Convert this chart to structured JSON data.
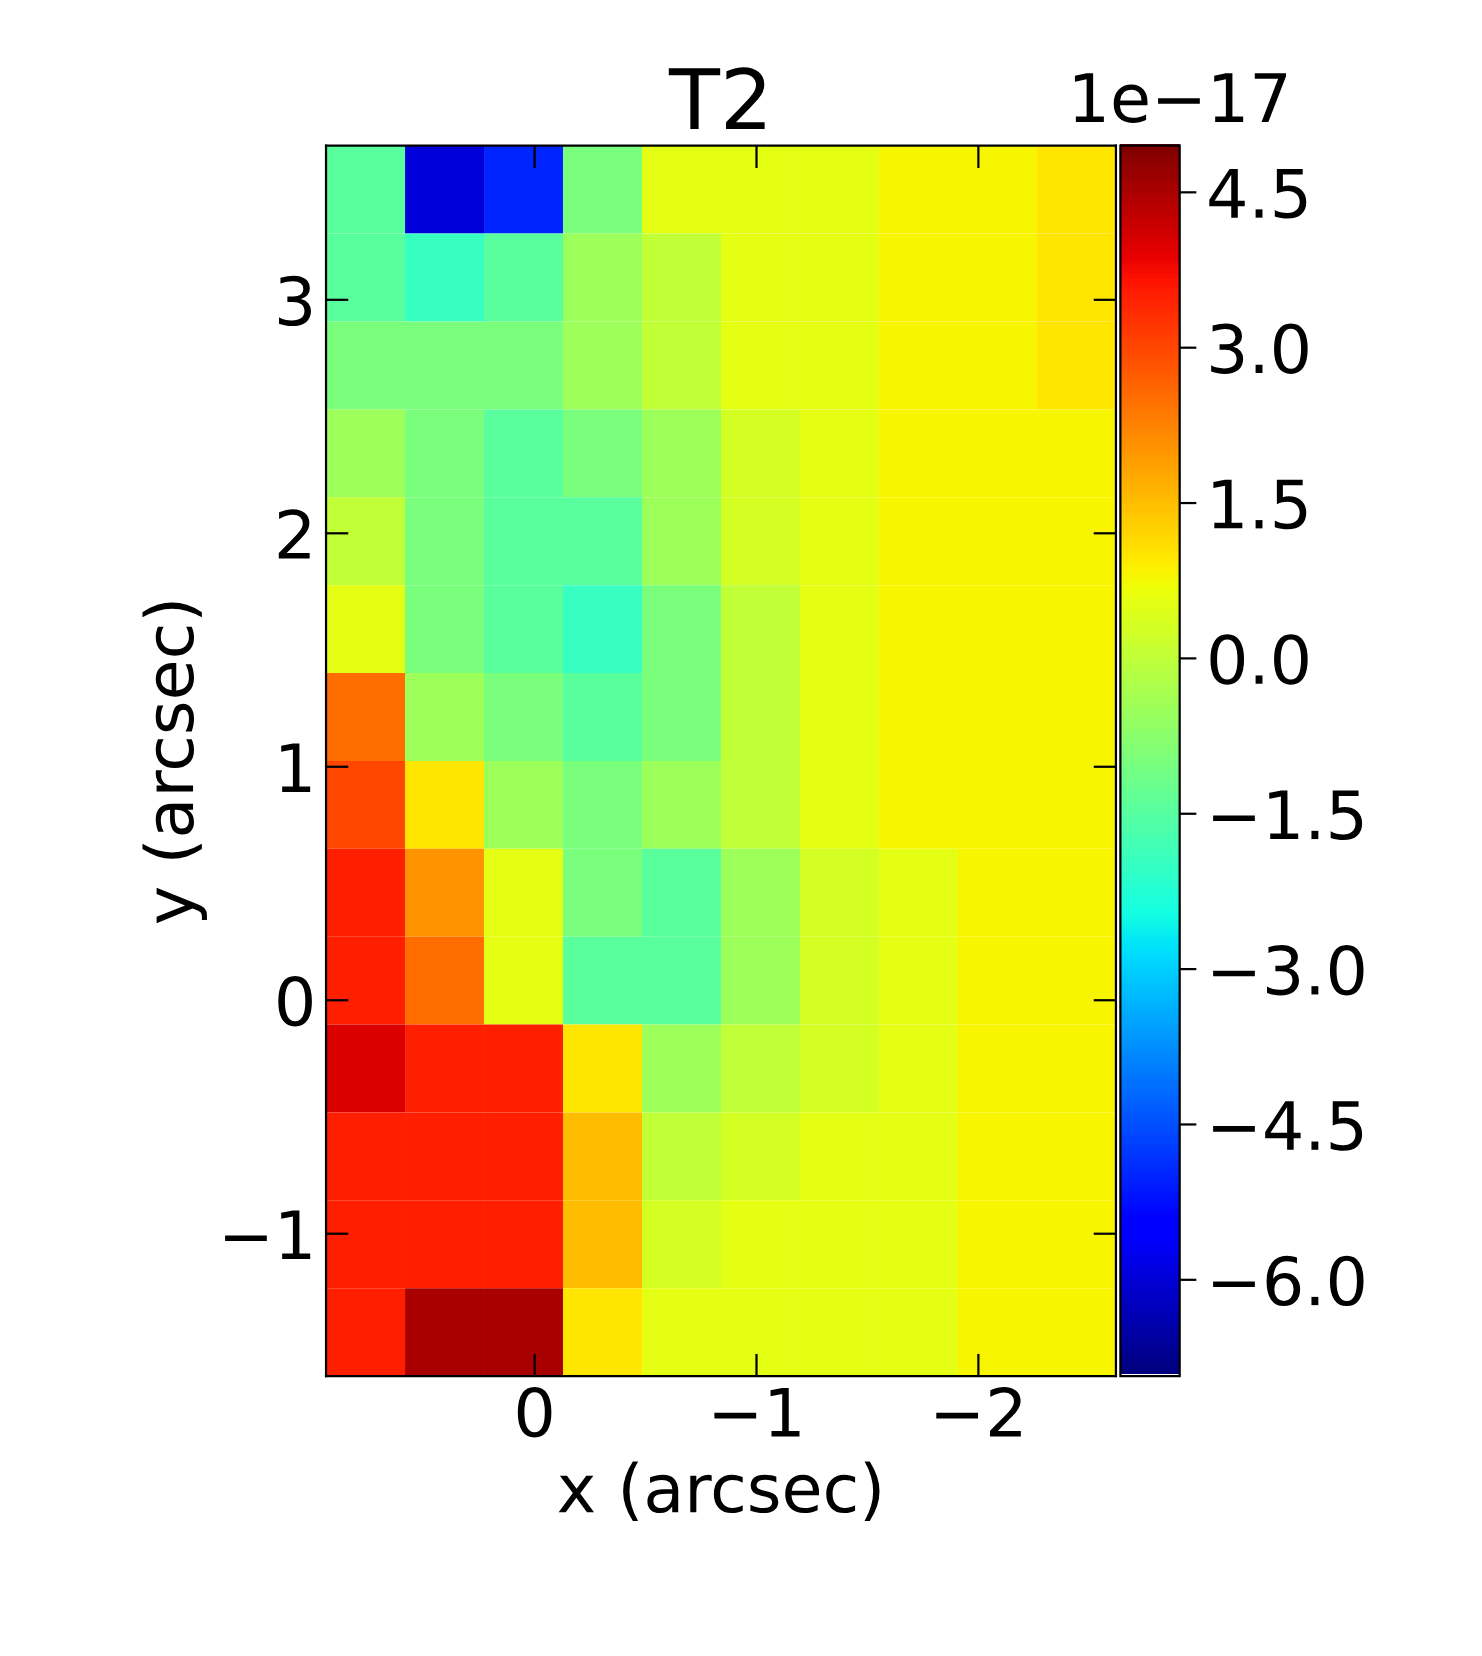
{
  "chart_data": {
    "type": "heatmap",
    "title": "T2",
    "xlabel": "x (arcsec)",
    "ylabel": "y (arcsec)",
    "annotations": [
      "1e−17"
    ],
    "xlim": [
      0.94,
      -2.62
    ],
    "ylim": [
      -1.61,
      3.66
    ],
    "xticks": [
      {
        "value": 0,
        "label": "0"
      },
      {
        "value": -1,
        "label": "−1"
      },
      {
        "value": -2,
        "label": "−2"
      }
    ],
    "yticks": [
      {
        "value": -1,
        "label": "−1"
      },
      {
        "value": 0,
        "label": "0"
      },
      {
        "value": 1,
        "label": "1"
      },
      {
        "value": 2,
        "label": "2"
      },
      {
        "value": 3,
        "label": "3"
      }
    ],
    "clim": [
      -6.93,
      4.95
    ],
    "cticks": [
      {
        "value": -6.0,
        "label": "−6.0"
      },
      {
        "value": -4.5,
        "label": "−4.5"
      },
      {
        "value": -3.0,
        "label": "−3.0"
      },
      {
        "value": -1.5,
        "label": "−1.5"
      },
      {
        "value": 0.0,
        "label": "0.0"
      },
      {
        "value": 1.5,
        "label": "1.5"
      },
      {
        "value": 3.0,
        "label": "3.0"
      },
      {
        "value": 4.5,
        "label": "4.5"
      }
    ],
    "cells": [
      [
        -1.5,
        -6.0,
        -5.0,
        -1.0,
        0.5,
        0.5,
        0.5,
        0.8,
        0.8,
        1.0
      ],
      [
        -1.5,
        -2.0,
        -1.5,
        -0.5,
        0.0,
        0.5,
        0.5,
        0.8,
        0.8,
        1.0
      ],
      [
        -1.0,
        -1.0,
        -1.0,
        -0.5,
        0.0,
        0.5,
        0.5,
        0.8,
        0.8,
        1.0
      ],
      [
        -0.5,
        -1.0,
        -1.5,
        -1.0,
        -0.5,
        0.3,
        0.5,
        0.8,
        0.8,
        0.8
      ],
      [
        0.0,
        -1.0,
        -1.5,
        -1.5,
        -0.5,
        0.3,
        0.5,
        0.8,
        0.8,
        0.8
      ],
      [
        0.5,
        -1.0,
        -1.5,
        -2.0,
        -1.0,
        0.0,
        0.5,
        0.8,
        0.8,
        0.8
      ],
      [
        2.5,
        -0.5,
        -1.0,
        -1.5,
        -1.0,
        0.0,
        0.5,
        0.8,
        0.8,
        0.8
      ],
      [
        3.0,
        1.0,
        -0.5,
        -1.0,
        -0.5,
        0.0,
        0.5,
        0.8,
        0.8,
        0.8
      ],
      [
        3.5,
        2.0,
        0.5,
        -1.0,
        -1.5,
        -0.5,
        0.3,
        0.5,
        0.8,
        0.8
      ],
      [
        3.5,
        2.5,
        0.5,
        -1.5,
        -1.5,
        -0.5,
        0.3,
        0.5,
        0.8,
        0.8
      ],
      [
        4.0,
        3.5,
        3.5,
        1.0,
        -0.5,
        0.0,
        0.3,
        0.5,
        0.8,
        0.8
      ],
      [
        3.5,
        3.5,
        3.5,
        1.5,
        0.0,
        0.3,
        0.5,
        0.5,
        0.8,
        0.8
      ],
      [
        3.5,
        3.5,
        3.5,
        1.5,
        0.3,
        0.5,
        0.5,
        0.5,
        0.8,
        0.8
      ],
      [
        3.5,
        4.5,
        4.5,
        1.0,
        0.5,
        0.5,
        0.5,
        0.5,
        0.8,
        0.8
      ]
    ]
  }
}
